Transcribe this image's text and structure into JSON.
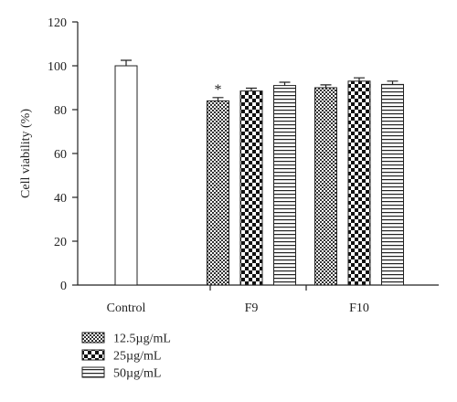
{
  "chart_data": {
    "type": "bar",
    "ylabel": "Cell viability (%)",
    "xlabel": "",
    "ylim": [
      0,
      120
    ],
    "yticks": [
      0,
      20,
      40,
      60,
      80,
      100,
      120
    ],
    "categories": [
      "Control",
      "F9",
      "F10"
    ],
    "control": {
      "value": 100,
      "error": 2.5
    },
    "series": [
      {
        "name": "12.5µg/mL",
        "pattern": "fine-check",
        "values": [
          null,
          84,
          90
        ],
        "errors": [
          null,
          1.5,
          1.3
        ]
      },
      {
        "name": "25µg/mL",
        "pattern": "coarse-check",
        "values": [
          null,
          88.5,
          93
        ],
        "errors": [
          null,
          1.3,
          1.5
        ]
      },
      {
        "name": "50µg/mL",
        "pattern": "horizontal-lines",
        "values": [
          null,
          91,
          91.5
        ],
        "errors": [
          null,
          1.5,
          1.5
        ]
      }
    ],
    "annotations": [
      {
        "text": "*",
        "category": "F9",
        "series": 0
      }
    ],
    "legend_position": "bottom-left",
    "grid": false
  }
}
